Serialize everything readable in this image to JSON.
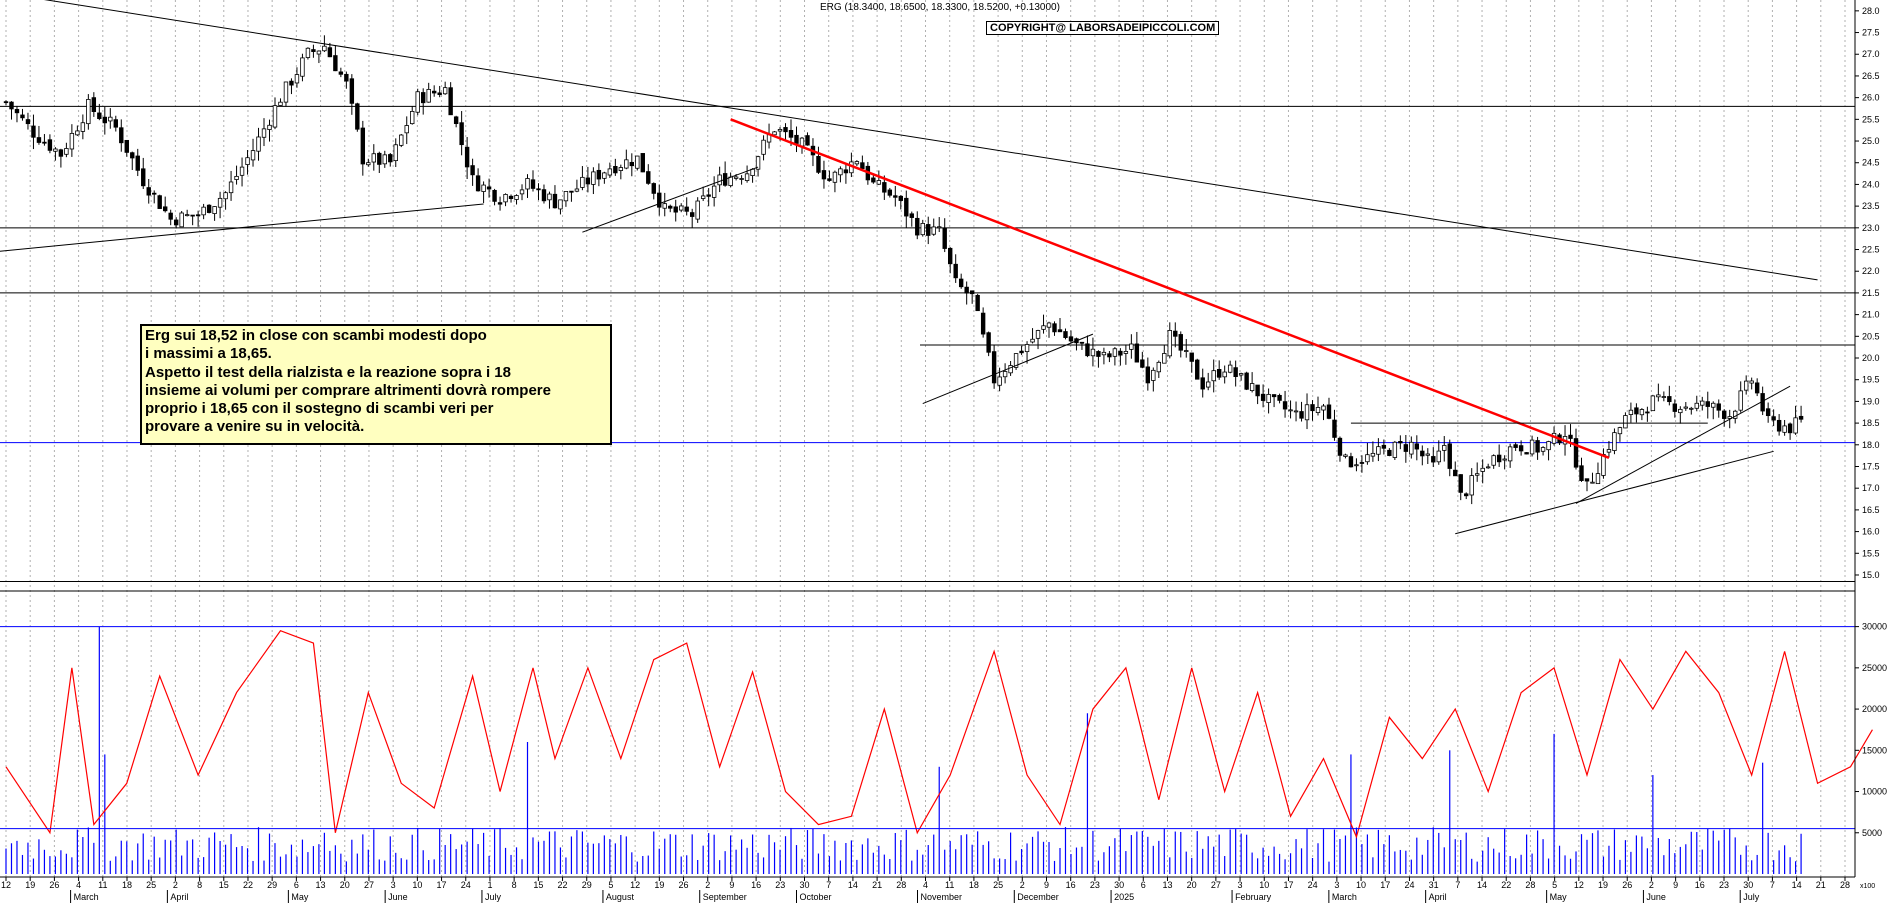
{
  "header": {
    "quote": "ERG (18.3400, 18.6500, 18.3300, 18.5200, +0.13000)",
    "copyright": "COPYRIGHT@ LABORSADEIPICCOLI.COM"
  },
  "annotation": {
    "lines": [
      "Erg sui 18,52 in close con scambi modesti dopo",
      "i massimi a 18,65.",
      "Aspetto il test della rialzista e la reazione sopra i 18",
      "insieme ai volumi per comprare altrimenti dovrà rompere",
      "proprio i 18,65 con il sostegno di scambi veri per",
      "provare a venire su in velocità."
    ]
  },
  "chart_data": [
    {
      "type": "candlestick",
      "ylim": [
        14.7,
        28.25
      ],
      "y_ticks": [
        "15.0",
        "15.5",
        "16.0",
        "16.5",
        "17.0",
        "17.5",
        "18.0",
        "18.5",
        "19.0",
        "19.5",
        "20.0",
        "20.5",
        "21.0",
        "21.5",
        "22.0",
        "22.5",
        "23.0",
        "23.5",
        "24.0",
        "24.5",
        "25.0",
        "25.5",
        "26.0",
        "26.5",
        "27.0",
        "27.5",
        "28.0"
      ],
      "horizontal_levels": [
        25.8,
        23.0,
        21.5,
        20.3,
        18.05,
        14.85
      ],
      "price_path_daily_approx": [
        [
          0,
          25.9
        ],
        [
          5,
          25.2
        ],
        [
          10,
          24.7
        ],
        [
          15,
          25.8
        ],
        [
          20,
          25.3
        ],
        [
          25,
          24.1
        ],
        [
          30,
          23.2
        ],
        [
          35,
          23.3
        ],
        [
          40,
          23.8
        ],
        [
          45,
          24.8
        ],
        [
          50,
          26.0
        ],
        [
          55,
          27.0
        ],
        [
          58,
          27.2
        ],
        [
          62,
          26.3
        ],
        [
          65,
          24.6
        ],
        [
          70,
          24.5
        ],
        [
          75,
          26.0
        ],
        [
          80,
          26.2
        ],
        [
          85,
          24.1
        ],
        [
          90,
          23.7
        ],
        [
          95,
          24.0
        ],
        [
          100,
          23.6
        ],
        [
          105,
          24.0
        ],
        [
          110,
          24.4
        ],
        [
          115,
          24.6
        ],
        [
          120,
          23.4
        ],
        [
          125,
          23.3
        ],
        [
          130,
          24.1
        ],
        [
          135,
          24.3
        ],
        [
          140,
          25.3
        ],
        [
          145,
          24.9
        ],
        [
          150,
          24.1
        ],
        [
          155,
          24.6
        ],
        [
          158,
          24.0
        ],
        [
          162,
          23.7
        ],
        [
          166,
          23.0
        ],
        [
          170,
          22.9
        ],
        [
          173,
          21.7
        ],
        [
          176,
          21.4
        ],
        [
          180,
          19.5
        ],
        [
          185,
          20.2
        ],
        [
          190,
          20.8
        ],
        [
          195,
          20.3
        ],
        [
          200,
          20.0
        ],
        [
          205,
          20.2
        ],
        [
          208,
          19.6
        ],
        [
          212,
          20.5
        ],
        [
          215,
          20.0
        ],
        [
          218,
          19.4
        ],
        [
          222,
          19.8
        ],
        [
          226,
          19.4
        ],
        [
          230,
          19.0
        ],
        [
          235,
          18.7
        ],
        [
          240,
          18.9
        ],
        [
          244,
          17.6
        ],
        [
          248,
          17.7
        ],
        [
          252,
          17.9
        ],
        [
          256,
          18.0
        ],
        [
          260,
          17.5
        ],
        [
          262,
          18.0
        ],
        [
          265,
          16.8
        ],
        [
          270,
          17.6
        ],
        [
          275,
          18.0
        ],
        [
          280,
          17.9
        ],
        [
          284,
          18.3
        ],
        [
          288,
          17.0
        ],
        [
          292,
          18.0
        ],
        [
          295,
          18.6
        ],
        [
          300,
          19.0
        ],
        [
          305,
          18.9
        ],
        [
          310,
          18.9
        ],
        [
          314,
          18.7
        ],
        [
          318,
          19.5
        ],
        [
          321,
          18.5
        ],
        [
          325,
          18.4
        ],
        [
          327,
          18.52
        ]
      ],
      "trendlines": [
        {
          "name": "lunga ribassista",
          "color": "#000000",
          "points": [
            [
              -10,
              28.6
            ],
            [
              330,
              21.8
            ]
          ]
        },
        {
          "name": "ribassista",
          "color": "#ff0000",
          "points": [
            [
              132,
              25.5
            ],
            [
              292,
              17.7
            ]
          ]
        },
        {
          "name": "rialzista di lungo periodo",
          "color": "#000000",
          "points": [
            [
              -10,
              22.35
            ],
            [
              87,
              23.55
            ]
          ]
        },
        {
          "name": "rialzista",
          "color": "#000000",
          "points": [
            [
              105,
              22.9
            ],
            [
              137,
              24.4
            ]
          ]
        },
        {
          "name": "rialzista",
          "color": "#000000",
          "points": [
            [
              167,
              18.95
            ],
            [
              198,
              20.55
            ]
          ]
        },
        {
          "name": "resistenza",
          "color": "#000000",
          "points": [
            [
              245,
              18.5
            ],
            [
              310,
              18.5
            ]
          ]
        },
        {
          "name": "rialzista",
          "color": "#000000",
          "points": [
            [
              264,
              15.95
            ],
            [
              322,
              17.85
            ]
          ]
        },
        {
          "name": "rialzista",
          "color": "#000000",
          "points": [
            [
              286,
              16.65
            ],
            [
              325,
              19.35
            ]
          ]
        }
      ]
    },
    {
      "type": "bar+line",
      "ylim": [
        0,
        32500
      ],
      "y_ticks": [
        "5000",
        "10000",
        "15000",
        "20000",
        "25000",
        "30000"
      ],
      "horizontal_levels": [
        30000,
        5500
      ],
      "volume_notable": [
        [
          17,
          30000
        ],
        [
          18,
          14500
        ],
        [
          58,
          5000
        ],
        [
          95,
          16000
        ],
        [
          170,
          13000
        ],
        [
          197,
          19500
        ],
        [
          245,
          14500
        ],
        [
          263,
          15000
        ],
        [
          282,
          17000
        ],
        [
          300,
          12000
        ],
        [
          320,
          13500
        ]
      ],
      "volume_oscillator_path_approx": [
        [
          0,
          13000
        ],
        [
          8,
          5000
        ],
        [
          12,
          25000
        ],
        [
          16,
          6000
        ],
        [
          22,
          11000
        ],
        [
          28,
          24000
        ],
        [
          35,
          12000
        ],
        [
          42,
          22000
        ],
        [
          50,
          29500
        ],
        [
          56,
          28000
        ],
        [
          60,
          5000
        ],
        [
          66,
          22000
        ],
        [
          72,
          11000
        ],
        [
          78,
          8000
        ],
        [
          85,
          24000
        ],
        [
          90,
          10000
        ],
        [
          96,
          25000
        ],
        [
          100,
          14000
        ],
        [
          106,
          25000
        ],
        [
          112,
          14000
        ],
        [
          118,
          26000
        ],
        [
          124,
          28000
        ],
        [
          130,
          13000
        ],
        [
          136,
          24500
        ],
        [
          142,
          10000
        ],
        [
          148,
          6000
        ],
        [
          154,
          7000
        ],
        [
          160,
          20000
        ],
        [
          166,
          5000
        ],
        [
          172,
          12000
        ],
        [
          180,
          27000
        ],
        [
          186,
          12000
        ],
        [
          192,
          6000
        ],
        [
          198,
          20000
        ],
        [
          204,
          25000
        ],
        [
          210,
          9000
        ],
        [
          216,
          25000
        ],
        [
          222,
          10000
        ],
        [
          228,
          22000
        ],
        [
          234,
          7000
        ],
        [
          240,
          14000
        ],
        [
          246,
          4500
        ],
        [
          252,
          19000
        ],
        [
          258,
          14000
        ],
        [
          264,
          20000
        ],
        [
          270,
          10000
        ],
        [
          276,
          22000
        ],
        [
          282,
          25000
        ],
        [
          288,
          12000
        ],
        [
          294,
          26000
        ],
        [
          300,
          20000
        ],
        [
          306,
          27000
        ],
        [
          312,
          22000
        ],
        [
          318,
          12000
        ],
        [
          324,
          27000
        ],
        [
          330,
          11000
        ],
        [
          336,
          13000
        ],
        [
          340,
          17500
        ]
      ]
    }
  ],
  "x_axis": {
    "days": [
      "12",
      "19",
      "26",
      "4",
      "11",
      "18",
      "25",
      "2",
      "8",
      "15",
      "22",
      "29",
      "6",
      "13",
      "20",
      "27",
      "3",
      "10",
      "17",
      "24",
      "1",
      "8",
      "15",
      "22",
      "29",
      "5",
      "12",
      "19",
      "26",
      "2",
      "9",
      "16",
      "23",
      "30",
      "7",
      "14",
      "21",
      "28",
      "4",
      "11",
      "18",
      "25",
      "2",
      "9",
      "16",
      "23",
      "30",
      "6",
      "13",
      "20",
      "27",
      "3",
      "10",
      "17",
      "24",
      "3",
      "10",
      "17",
      "24",
      "31",
      "7",
      "14",
      "22",
      "28",
      "5",
      "12",
      "19",
      "26",
      "2",
      "9",
      "16",
      "23",
      "30",
      "7",
      "14",
      "21",
      "28"
    ],
    "months": [
      {
        "label": "March",
        "day_index": 3
      },
      {
        "label": "April",
        "day_index": 7
      },
      {
        "label": "May",
        "day_index": 12
      },
      {
        "label": "June",
        "day_index": 16
      },
      {
        "label": "July",
        "day_index": 20
      },
      {
        "label": "August",
        "day_index": 25
      },
      {
        "label": "September",
        "day_index": 29
      },
      {
        "label": "October",
        "day_index": 33
      },
      {
        "label": "November",
        "day_index": 38
      },
      {
        "label": "December",
        "day_index": 42
      },
      {
        "label": "2025",
        "day_index": 46
      },
      {
        "label": "February",
        "day_index": 51
      },
      {
        "label": "March",
        "day_index": 55
      },
      {
        "label": "April",
        "day_index": 59
      },
      {
        "label": "May",
        "day_index": 64
      },
      {
        "label": "June",
        "day_index": 68
      },
      {
        "label": "July",
        "day_index": 72
      }
    ],
    "corner_label": "x100"
  },
  "colors": {
    "trend_red": "#ff0000",
    "level_blue": "#0000ff",
    "volume_blue": "#0000ff",
    "oscillator_red": "#ff0000",
    "note_fill": "#ffffc0",
    "grid": "#b0b0b0"
  }
}
